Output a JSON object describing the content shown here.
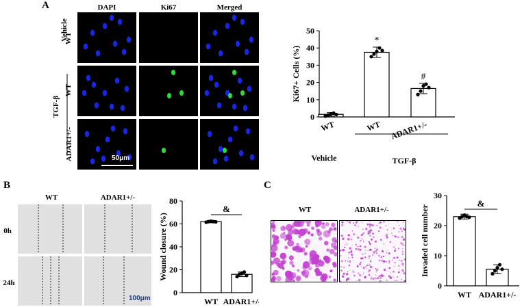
{
  "panels": {
    "A": {
      "letter": "A",
      "headers": [
        "DAPI",
        "Ki67",
        "Merged"
      ],
      "row_labels": {
        "vehicle": "Vehicle",
        "wt1": "WT",
        "tgfb": "TGF-β",
        "wt2": "WT",
        "adar": "ADAR1+/-"
      },
      "scale_label": "50μm"
    },
    "B": {
      "letter": "B",
      "headers": [
        "WT",
        "ADAR1+/-"
      ],
      "row_labels": [
        "0h",
        "24h"
      ],
      "scale_label": "100μm"
    },
    "C": {
      "letter": "C",
      "headers": [
        "WT",
        "ADAR1+/-"
      ]
    }
  },
  "colors": {
    "dapi": "#1a2bff",
    "ki67": "#2bdc3a",
    "stain": "#c23fd0",
    "bar_fill": "#ffffff",
    "bar_stroke": "#000000"
  },
  "chart_data": [
    {
      "id": "ki67",
      "type": "bar",
      "categories": [
        "WT",
        "WT",
        "ADAR1+/-"
      ],
      "values": [
        1.5,
        37.5,
        16.5
      ],
      "errors": [
        1.0,
        3.0,
        3.0
      ],
      "points": [
        [
          0.5,
          1.0,
          1.8,
          2.2,
          1.4
        ],
        [
          35,
          36.5,
          38,
          40,
          38.5
        ],
        [
          13,
          15,
          18,
          19,
          17
        ]
      ],
      "annotations": [
        "",
        "*",
        "#"
      ],
      "ylabel": "Ki67+ Cells (%)",
      "ylim": [
        0,
        50
      ],
      "yticks": [
        0,
        10,
        20,
        30,
        40,
        50
      ],
      "group_labels": [
        {
          "label": "Vehicle",
          "start": 0,
          "end": 0
        },
        {
          "label": "TGF-β",
          "start": 1,
          "end": 2
        }
      ]
    },
    {
      "id": "wound",
      "type": "bar",
      "categories": [
        "WT",
        "ADAR1+/-"
      ],
      "values": [
        62,
        16
      ],
      "errors": [
        1.0,
        2.0
      ],
      "points": [
        [
          61.5,
          62,
          62.5,
          62,
          61.8
        ],
        [
          14,
          16,
          17,
          18,
          15
        ]
      ],
      "bracket": "&",
      "ylabel": "Wound closure (%)",
      "ylim": [
        0,
        80
      ],
      "yticks": [
        0,
        20,
        40,
        60,
        80
      ]
    },
    {
      "id": "invasion",
      "type": "bar",
      "categories": [
        "WT",
        "ADAR1+/-"
      ],
      "values": [
        23,
        5.5
      ],
      "errors": [
        0.8,
        1.5
      ],
      "points": [
        [
          22.5,
          23,
          23.5,
          23,
          22.8
        ],
        [
          4,
          5,
          6,
          7,
          5.5
        ]
      ],
      "bracket": "&",
      "ylabel": "Invaded cell number",
      "ylim": [
        0,
        30
      ],
      "yticks": [
        0,
        10,
        20,
        30
      ]
    }
  ]
}
